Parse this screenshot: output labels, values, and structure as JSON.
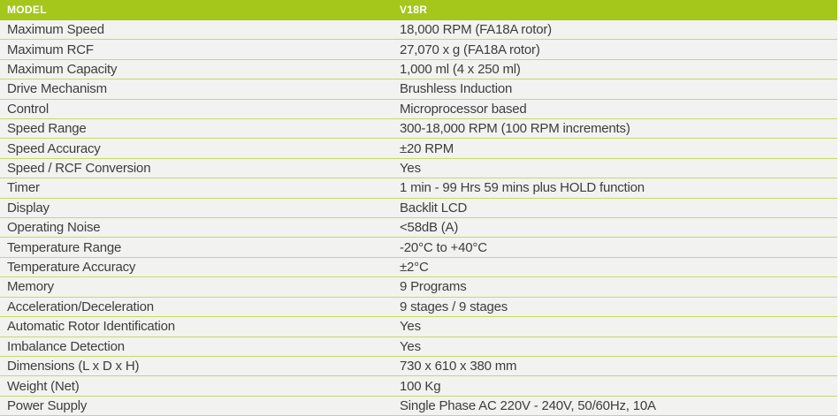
{
  "table": {
    "header": {
      "model_label": "MODEL",
      "model_value": "V18R"
    },
    "rows": [
      {
        "label": "Maximum Speed",
        "value": "18,000 RPM (FA18A rotor)"
      },
      {
        "label": "Maximum RCF",
        "value": "27,070 x g (FA18A rotor)"
      },
      {
        "label": "Maximum Capacity",
        "value": "1,000 ml (4 x 250 ml)"
      },
      {
        "label": "Drive Mechanism",
        "value": "Brushless Induction"
      },
      {
        "label": "Control",
        "value": "Microprocessor based"
      },
      {
        "label": "Speed Range",
        "value": "300-18,000 RPM (100 RPM increments)"
      },
      {
        "label": "Speed Accuracy",
        "value": "±20 RPM"
      },
      {
        "label": "Speed / RCF Conversion",
        "value": "Yes"
      },
      {
        "label": "Timer",
        "value": "1 min - 99 Hrs 59 mins plus HOLD function"
      },
      {
        "label": "Display",
        "value": "Backlit LCD"
      },
      {
        "label": "Operating Noise",
        "value": "<58dB (A)"
      },
      {
        "label": "Temperature Range",
        "value": "-20°C to +40°C"
      },
      {
        "label": "Temperature Accuracy",
        "value": "±2°C"
      },
      {
        "label": "Memory",
        "value": "9 Programs"
      },
      {
        "label": "Acceleration/Deceleration",
        "value": "9 stages / 9 stages"
      },
      {
        "label": "Automatic Rotor Identification",
        "value": "Yes"
      },
      {
        "label": "Imbalance Detection",
        "value": "Yes"
      },
      {
        "label": "Dimensions (L x D x H)",
        "value": "730 x 610 x 380 mm"
      },
      {
        "label": "Weight (Net)",
        "value": "100 Kg"
      },
      {
        "label": "Power Supply",
        "value": "Single Phase AC 220V - 240V, 50/60Hz, 10A"
      }
    ]
  },
  "colors": {
    "header_bg": "#a5c71b",
    "header_text": "#ffffff",
    "row_bg": "#f2f2f0",
    "separator": "#c8d967",
    "body_text": "#3d3d3d"
  }
}
